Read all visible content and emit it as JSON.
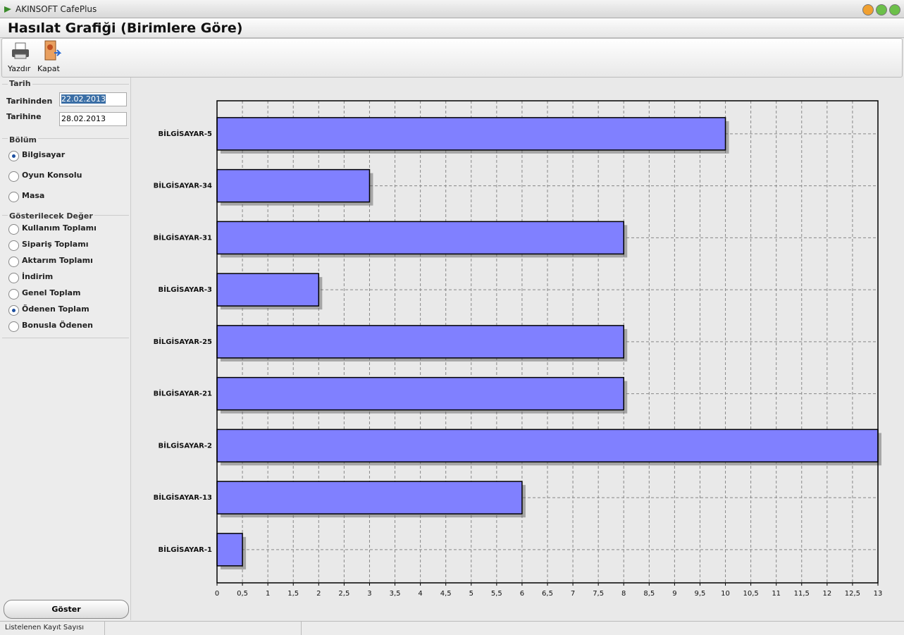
{
  "window": {
    "title": "AKINSOFT CafePlus"
  },
  "header": {
    "title": "Hasılat Grafiği (Birimlere Göre)"
  },
  "toolbar": {
    "buttons": [
      "Yazdır",
      "Kapat"
    ]
  },
  "filters": {
    "date": {
      "legend": "Tarih",
      "from_label": "Tarihinden",
      "from": "22.02.2013",
      "to_label": "Tarihine",
      "to": "28.02.2013"
    },
    "section": {
      "legend": "Bölüm",
      "options": [
        {
          "label": "Bilgisayar",
          "checked": true
        },
        {
          "label": "Oyun Konsolu",
          "checked": false
        },
        {
          "label": "Masa",
          "checked": false
        }
      ]
    },
    "value": {
      "legend": "Gösterilecek Değer",
      "options": [
        {
          "label": "Kullanım Toplamı",
          "checked": false
        },
        {
          "label": "Sipariş Toplamı",
          "checked": false
        },
        {
          "label": "Aktarım Toplamı",
          "checked": false
        },
        {
          "label": "İndirim",
          "checked": false
        },
        {
          "label": "Genel Toplam",
          "checked": false
        },
        {
          "label": "Ödenen Toplam",
          "checked": true
        },
        {
          "label": "Bonusla Ödenen",
          "checked": false
        }
      ]
    },
    "button": "Göster"
  },
  "status": {
    "text": "Listelenen Kayıt Sayısı"
  },
  "chart_data": {
    "type": "bar",
    "categories": [
      "BİLGİSAYAR-5",
      "BİLGİSAYAR-34",
      "BİLGİSAYAR-31",
      "BİLGİSAYAR-3",
      "BİLGİSAYAR-25",
      "BİLGİSAYAR-21",
      "BİLGİSAYAR-2",
      "BİLGİSAYAR-13",
      "BİLGİSAYAR-1"
    ],
    "values": [
      10,
      3,
      8,
      2,
      8,
      8,
      13,
      6,
      0.5
    ],
    "color": "#8080ff",
    "xlim": [
      0,
      13
    ],
    "xticks": [
      0,
      {
        "value": 0.5,
        "label": "0,5"
      },
      1,
      {
        "value": 1.5,
        "label": "1,5"
      },
      2,
      {
        "value": 2.5,
        "label": "2,5"
      },
      3,
      {
        "value": 3.5,
        "label": "3,5"
      },
      4,
      {
        "value": 4.5,
        "label": "4,5"
      },
      5,
      {
        "value": 5.5,
        "label": "5,5"
      },
      6,
      {
        "value": 6.5,
        "label": "6,5"
      },
      7,
      {
        "value": 7.5,
        "label": "7,5"
      },
      8,
      {
        "value": 8.5,
        "label": "8,5"
      },
      9,
      {
        "value": 9.5,
        "label": "9,5"
      },
      10,
      {
        "value": 10.5,
        "label": "10,5"
      },
      11,
      {
        "value": 11.5,
        "label": "11,5"
      },
      12,
      {
        "value": 12.5,
        "label": "12,5"
      },
      13
    ],
    "grid": true
  }
}
